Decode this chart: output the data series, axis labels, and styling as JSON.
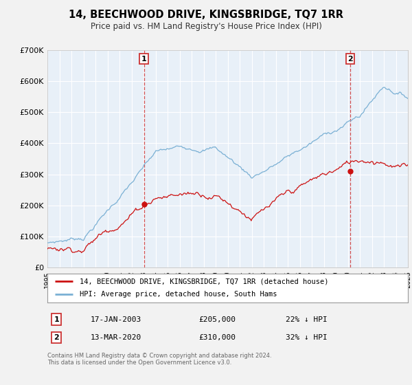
{
  "title": "14, BEECHWOOD DRIVE, KINGSBRIDGE, TQ7 1RR",
  "subtitle": "Price paid vs. HM Land Registry's House Price Index (HPI)",
  "background_color": "#f2f2f2",
  "plot_bg_color": "#e8f0f8",
  "hpi_color": "#7ab0d4",
  "price_color": "#cc1111",
  "marker_color": "#cc1111",
  "vline_color": "#cc3333",
  "sale1_x": 2003.04,
  "sale1_y": 205000,
  "sale1_label": "1",
  "sale1_date": "17-JAN-2003",
  "sale1_price": "£205,000",
  "sale1_pct": "22% ↓ HPI",
  "sale2_x": 2020.19,
  "sale2_y": 310000,
  "sale2_label": "2",
  "sale2_date": "13-MAR-2020",
  "sale2_price": "£310,000",
  "sale2_pct": "32% ↓ HPI",
  "legend_line1": "14, BEECHWOOD DRIVE, KINGSBRIDGE, TQ7 1RR (detached house)",
  "legend_line2": "HPI: Average price, detached house, South Hams",
  "footnote1": "Contains HM Land Registry data © Crown copyright and database right 2024.",
  "footnote2": "This data is licensed under the Open Government Licence v3.0.",
  "xmin": 1995,
  "xmax": 2025,
  "ylim": [
    0,
    700000
  ],
  "yticks": [
    0,
    100000,
    200000,
    300000,
    400000,
    500000,
    600000,
    700000
  ],
  "ytick_labels": [
    "£0",
    "£100K",
    "£200K",
    "£300K",
    "£400K",
    "£500K",
    "£600K",
    "£700K"
  ]
}
